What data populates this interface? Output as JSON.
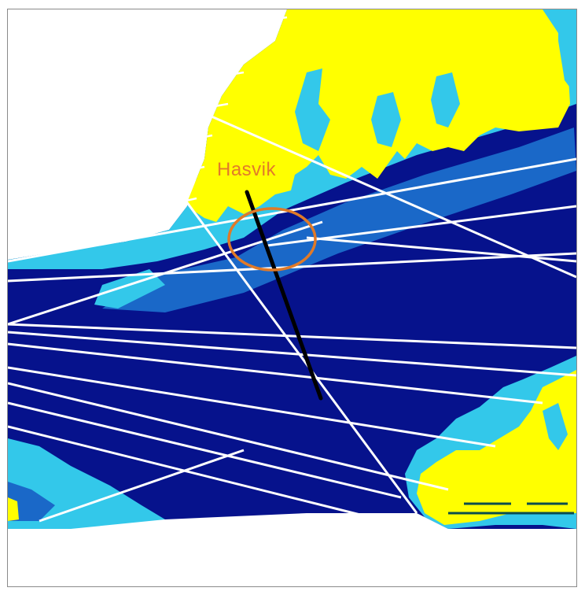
{
  "map": {
    "place_label": "Hasvik",
    "colors": {
      "land": "#ffff00",
      "shallow": "#00cfff",
      "mid_shallow": "#33c8ea",
      "medium": "#1a68c8",
      "deep": "#06128c",
      "deepest": "#000b7a",
      "survey_lines": "#ffffff",
      "highlight_profile": "#000000",
      "highlight_circle": "#e07a28",
      "scale_bar": "#0a4d4d"
    },
    "icons": [
      "highlight-circle",
      "profile-line",
      "scale-bar"
    ]
  }
}
